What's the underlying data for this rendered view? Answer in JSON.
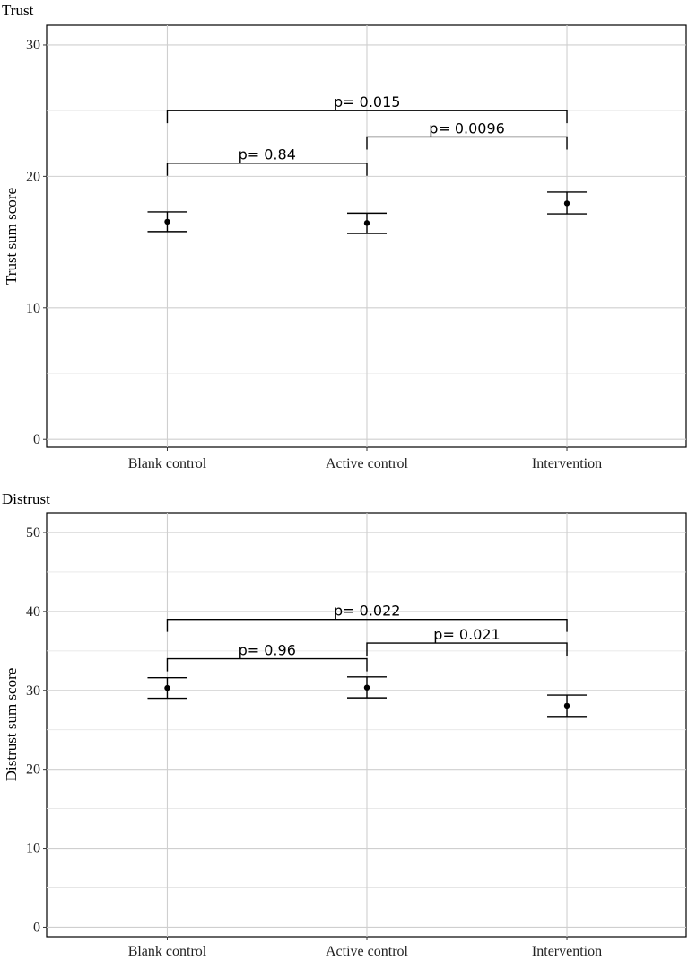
{
  "chart_data": [
    {
      "type": "errorbar",
      "title": "Trust",
      "xlabel": "",
      "ylabel": "Trust sum score",
      "categories": [
        "Blank control",
        "Active control",
        "Intervention"
      ],
      "means": [
        16.55,
        16.45,
        17.95
      ],
      "lower": [
        15.8,
        15.65,
        17.15
      ],
      "upper": [
        17.3,
        17.2,
        18.8
      ],
      "ylim": [
        -0.6,
        31.5
      ],
      "yticks": [
        0,
        10,
        20,
        30
      ],
      "yminor": [
        5,
        15,
        25
      ],
      "grid": true,
      "comparisons": [
        {
          "from": 0,
          "to": 1,
          "y": 21.0,
          "label": "p= 0.84"
        },
        {
          "from": 1,
          "to": 2,
          "y": 23.0,
          "label": "p= 0.0096"
        },
        {
          "from": 0,
          "to": 2,
          "y": 25.0,
          "label": "p= 0.015"
        }
      ]
    },
    {
      "type": "errorbar",
      "title": "Distrust",
      "xlabel": "",
      "ylabel": "Distrust sum score",
      "categories": [
        "Blank control",
        "Active control",
        "Intervention"
      ],
      "means": [
        30.3,
        30.35,
        28.05
      ],
      "lower": [
        29.0,
        29.05,
        26.7
      ],
      "upper": [
        31.6,
        31.7,
        29.4
      ],
      "ylim": [
        -1.2,
        52.5
      ],
      "yticks": [
        0,
        10,
        20,
        30,
        40,
        50
      ],
      "yminor": [
        5,
        15,
        25,
        35,
        45
      ],
      "grid": true,
      "comparisons": [
        {
          "from": 0,
          "to": 1,
          "y": 34.0,
          "label": "p= 0.96"
        },
        {
          "from": 1,
          "to": 2,
          "y": 36.0,
          "label": "p= 0.021"
        },
        {
          "from": 0,
          "to": 2,
          "y": 39.0,
          "label": "p= 0.022"
        }
      ]
    }
  ]
}
